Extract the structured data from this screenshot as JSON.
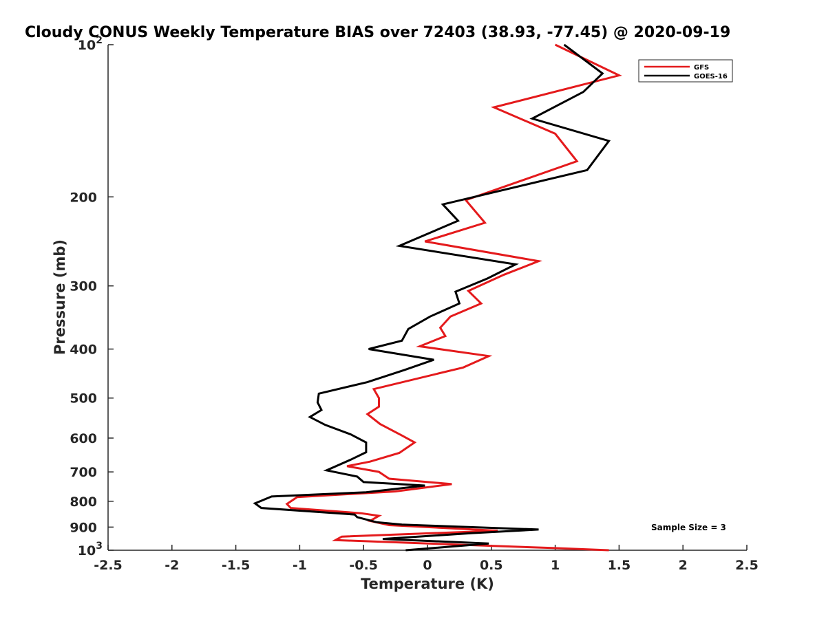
{
  "chart_data": {
    "type": "line",
    "title": "Cloudy CONUS Weekly Temperature BIAS over 72403 (38.93, -77.45) @ 2020-09-19",
    "xlabel": "Temperature (K)",
    "ylabel": "Pressure (mb)",
    "xlim": [
      -2.5,
      2.5
    ],
    "ylim": [
      100,
      1000
    ],
    "y_scale": "log",
    "y_reversed": true,
    "x_ticks": [
      "-2.5",
      "-2",
      "-1.5",
      "-1",
      "-0.5",
      "0",
      "0.5",
      "1",
      "1.5",
      "2",
      "2.5"
    ],
    "y_ticks": [
      {
        "value": 100,
        "base": "10",
        "exp": "2"
      },
      {
        "value": 200,
        "label": "200"
      },
      {
        "value": 300,
        "label": "300"
      },
      {
        "value": 400,
        "label": "400"
      },
      {
        "value": 500,
        "label": "500"
      },
      {
        "value": 600,
        "label": "600"
      },
      {
        "value": 700,
        "label": "700"
      },
      {
        "value": 800,
        "label": "800"
      },
      {
        "value": 900,
        "label": "900"
      },
      {
        "value": 1000,
        "base": "10",
        "exp": "3"
      }
    ],
    "grid": false,
    "legend_position": "top-right",
    "annotation": "Sample Size = 3",
    "series": [
      {
        "name": "GFS",
        "color": "#e41a1c",
        "points": [
          [
            1.0,
            100
          ],
          [
            1.5,
            115
          ],
          [
            0.52,
            133
          ],
          [
            1.0,
            150
          ],
          [
            1.17,
            170
          ],
          [
            0.3,
            203
          ],
          [
            0.45,
            225
          ],
          [
            -0.02,
            245
          ],
          [
            0.87,
            268
          ],
          [
            0.6,
            285
          ],
          [
            0.32,
            307
          ],
          [
            0.42,
            325
          ],
          [
            0.18,
            345
          ],
          [
            0.1,
            363
          ],
          [
            0.14,
            377
          ],
          [
            -0.06,
            395
          ],
          [
            0.48,
            413
          ],
          [
            0.28,
            435
          ],
          [
            -0.42,
            480
          ],
          [
            -0.38,
            500
          ],
          [
            -0.38,
            520
          ],
          [
            -0.47,
            538
          ],
          [
            -0.37,
            563
          ],
          [
            -0.2,
            593
          ],
          [
            -0.1,
            612
          ],
          [
            -0.22,
            642
          ],
          [
            -0.45,
            668
          ],
          [
            -0.63,
            682
          ],
          [
            -0.38,
            700
          ],
          [
            -0.3,
            722
          ],
          [
            0.19,
            740
          ],
          [
            -0.25,
            765
          ],
          [
            -1.02,
            785
          ],
          [
            -1.1,
            810
          ],
          [
            -1.07,
            825
          ],
          [
            -0.52,
            845
          ],
          [
            -0.38,
            855
          ],
          [
            -0.45,
            875
          ],
          [
            -0.3,
            892
          ],
          [
            0.55,
            915
          ],
          [
            -0.67,
            940
          ],
          [
            -0.72,
            955
          ],
          [
            0.5,
            980
          ],
          [
            0.98,
            990
          ],
          [
            1.42,
            1000
          ]
        ]
      },
      {
        "name": "GOES-16",
        "color": "#000000",
        "points": [
          [
            1.07,
            100
          ],
          [
            1.37,
            114
          ],
          [
            1.22,
            124
          ],
          [
            0.82,
            140
          ],
          [
            1.42,
            155
          ],
          [
            1.25,
            177
          ],
          [
            0.12,
            207
          ],
          [
            0.24,
            223
          ],
          [
            -0.22,
            250
          ],
          [
            0.69,
            272
          ],
          [
            0.47,
            290
          ],
          [
            0.22,
            308
          ],
          [
            0.25,
            325
          ],
          [
            0.02,
            345
          ],
          [
            -0.15,
            365
          ],
          [
            -0.2,
            385
          ],
          [
            -0.46,
            400
          ],
          [
            0.05,
            420
          ],
          [
            -0.18,
            440
          ],
          [
            -0.47,
            465
          ],
          [
            -0.85,
            490
          ],
          [
            -0.86,
            510
          ],
          [
            -0.83,
            528
          ],
          [
            -0.92,
            545
          ],
          [
            -0.8,
            565
          ],
          [
            -0.6,
            590
          ],
          [
            -0.48,
            612
          ],
          [
            -0.48,
            640
          ],
          [
            -0.6,
            662
          ],
          [
            -0.79,
            695
          ],
          [
            -0.55,
            715
          ],
          [
            -0.5,
            733
          ],
          [
            -0.02,
            745
          ],
          [
            -0.48,
            768
          ],
          [
            -1.22,
            783
          ],
          [
            -1.35,
            808
          ],
          [
            -1.3,
            825
          ],
          [
            -0.57,
            850
          ],
          [
            -0.55,
            860
          ],
          [
            -0.4,
            880
          ],
          [
            -0.2,
            890
          ],
          [
            0.87,
            910
          ],
          [
            0.35,
            925
          ],
          [
            -0.35,
            950
          ],
          [
            0.48,
            970
          ],
          [
            -0.17,
            1000
          ]
        ]
      }
    ]
  }
}
